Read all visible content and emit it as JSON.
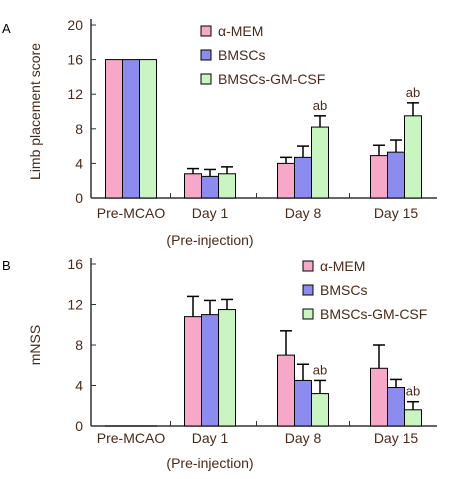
{
  "panels": [
    {
      "panel_label": "A",
      "legend_title": "",
      "chart_data": {
        "type": "bar",
        "title": "",
        "xlabel": "",
        "ylabel": "Limb placement score",
        "ylim": [
          0,
          20
        ],
        "yticks": [
          0,
          4,
          8,
          12,
          16,
          20
        ],
        "grid": false,
        "legend_position": "top-right",
        "categories": [
          "Pre-MCAO",
          "Day 1",
          "Day 8",
          "Day 15"
        ],
        "category_sublabels": [
          "",
          "(Pre-injection)",
          "",
          ""
        ],
        "series": [
          {
            "name": "α-MEM",
            "color": "#f7a8c8",
            "values": [
              16,
              2.8,
              4.0,
              4.9
            ],
            "errors": [
              0,
              0.6,
              0.7,
              1.2
            ],
            "annotations": [
              "",
              "",
              "",
              ""
            ]
          },
          {
            "name": "BMSCs",
            "color": "#8c8cf0",
            "values": [
              16,
              2.5,
              4.7,
              5.3
            ],
            "errors": [
              0,
              0.8,
              1.3,
              1.4
            ],
            "annotations": [
              "",
              "",
              "",
              ""
            ]
          },
          {
            "name": "BMSCs-GM-CSF",
            "color": "#c8f5c0",
            "values": [
              16,
              2.8,
              8.2,
              9.5
            ],
            "errors": [
              0,
              0.8,
              1.3,
              1.5
            ],
            "annotations": [
              "",
              "",
              "ab",
              "ab"
            ]
          }
        ]
      }
    },
    {
      "panel_label": "B",
      "legend_title": "",
      "chart_data": {
        "type": "bar",
        "title": "",
        "xlabel": "",
        "ylabel": "mNSS",
        "ylim": [
          0,
          16
        ],
        "yticks": [
          0,
          4,
          8,
          12,
          16
        ],
        "grid": false,
        "legend_position": "top-right",
        "categories": [
          "Pre-MCAO",
          "Day 1",
          "Day 8",
          "Day 15"
        ],
        "category_sublabels": [
          "",
          "(Pre-injection)",
          "",
          ""
        ],
        "series": [
          {
            "name": "α-MEM",
            "color": "#f7a8c8",
            "values": [
              0,
              10.8,
              7.0,
              5.7
            ],
            "errors": [
              0,
              2.0,
              2.4,
              2.3
            ],
            "annotations": [
              "",
              "",
              "",
              ""
            ]
          },
          {
            "name": "BMSCs",
            "color": "#8c8cf0",
            "values": [
              0,
              11.0,
              4.5,
              3.8
            ],
            "errors": [
              0,
              1.4,
              1.6,
              0.8
            ],
            "annotations": [
              "",
              "",
              "",
              ""
            ]
          },
          {
            "name": "BMSCs-GM-CSF",
            "color": "#c8f5c0",
            "values": [
              0,
              11.5,
              3.2,
              1.6
            ],
            "errors": [
              0,
              1.0,
              1.3,
              0.8
            ],
            "annotations": [
              "",
              "",
              "ab",
              "ab"
            ]
          }
        ]
      }
    }
  ]
}
